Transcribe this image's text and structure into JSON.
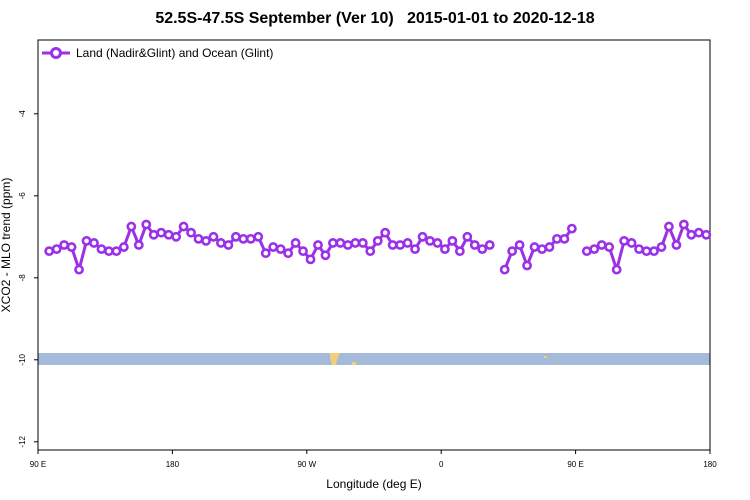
{
  "title": "52.5S-47.5S September (Ver 10)   2015-01-01 to 2020-12-18",
  "chart_data": {
    "type": "line",
    "title": "52.5S-47.5S September (Ver 10)   2015-01-01 to 2020-12-18",
    "xlabel": "Longitude (deg E)",
    "ylabel": "XCO2 - MLO trend (ppm)",
    "xlim": [
      90,
      450
    ],
    "ylim": [
      -12.2,
      -2.2
    ],
    "x_ticks": [
      {
        "value": 90,
        "label": "90 E"
      },
      {
        "value": 162,
        "label": "180"
      },
      {
        "value": 234,
        "label": "90 W"
      },
      {
        "value": 306,
        "label": "0"
      },
      {
        "value": 378,
        "label": "90 E"
      },
      {
        "value": 450,
        "label": "180"
      }
    ],
    "y_ticks": [
      -12,
      -10,
      -8,
      -6,
      -4
    ],
    "grid": false,
    "legend_position": "top-left",
    "series": [
      {
        "name": "Land (Nadir&Glint) and Ocean (Glint)",
        "color": "#9B30E8",
        "x": [
          96,
          100,
          104,
          108,
          112,
          116,
          120,
          124,
          128,
          132,
          136,
          140,
          144,
          148,
          152,
          156,
          160,
          164,
          168,
          172,
          176,
          180,
          184,
          188,
          192,
          196,
          200,
          204,
          208,
          212,
          216,
          220,
          224,
          228,
          232,
          236,
          240,
          244,
          248,
          252,
          256,
          260,
          264,
          268,
          272,
          276,
          280,
          284,
          288,
          292,
          296,
          300,
          304,
          308,
          312,
          316,
          320,
          324,
          328,
          332,
          340,
          344,
          348,
          352,
          356,
          360,
          364,
          368,
          372,
          376,
          384,
          388,
          392,
          396,
          400,
          404,
          408,
          412,
          416,
          420,
          424,
          428,
          432,
          436,
          440,
          444,
          448
        ],
        "y": [
          -7.35,
          -7.3,
          -7.2,
          -7.25,
          -7.8,
          -7.1,
          -7.15,
          -7.3,
          -7.35,
          -7.35,
          -7.25,
          -6.75,
          -7.2,
          -6.7,
          -6.95,
          -6.9,
          -6.95,
          -7.0,
          -6.75,
          -6.9,
          -7.05,
          -7.1,
          -7.0,
          -7.15,
          -7.2,
          -7.0,
          -7.05,
          -7.05,
          -7.0,
          -7.4,
          -7.25,
          -7.3,
          -7.4,
          -7.15,
          -7.35,
          -7.55,
          -7.2,
          -7.45,
          -7.15,
          -7.15,
          -7.2,
          -7.15,
          -7.15,
          -7.35,
          -7.1,
          -6.9,
          -7.2,
          -7.2,
          -7.15,
          -7.3,
          -7.0,
          -7.1,
          -7.15,
          -7.3,
          -7.1,
          -7.35,
          -7.0,
          -7.2,
          -7.3,
          -7.2,
          -7.8,
          -7.35,
          -7.2,
          -7.7,
          -7.25,
          -7.3,
          -7.25,
          -7.05,
          -7.05,
          -6.8,
          -7.35,
          -7.3,
          -7.2,
          -7.25,
          -7.8,
          -7.1,
          -7.15,
          -7.3,
          -7.35,
          -7.35,
          -7.25,
          -6.75,
          -7.2,
          -6.7,
          -6.95,
          -6.9,
          -6.95
        ]
      }
    ]
  }
}
